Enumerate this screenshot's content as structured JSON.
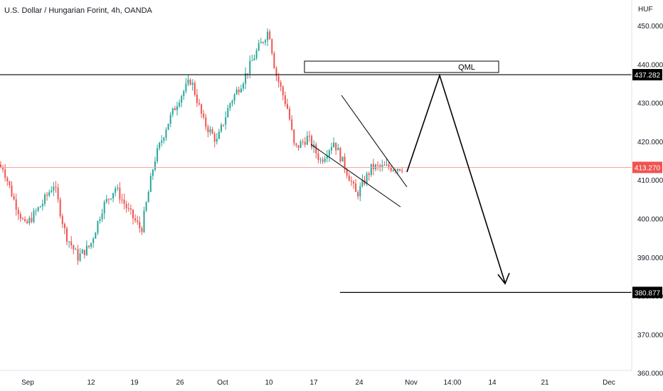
{
  "header": {
    "title": "U.S. Dollar / Hungarian Forint, 4h, OANDA"
  },
  "chart_data": {
    "type": "candlestick",
    "currency": "HUF",
    "y_ticks": [
      "450.000",
      "440.000",
      "430.000",
      "420.000",
      "410.000",
      "400.000",
      "390.000",
      "380.000",
      "370.000",
      "360.000"
    ],
    "y_tick_values": [
      450,
      440,
      430,
      420,
      410,
      400,
      390,
      380,
      370,
      360
    ],
    "x_ticks": [
      "Sep",
      "12",
      "19",
      "26",
      "Oct",
      "10",
      "17",
      "24",
      "Nov",
      "14:00",
      "14",
      "21",
      "Dec"
    ],
    "ylim": [
      358,
      452
    ],
    "grid": false,
    "last_price": {
      "label": "413.270",
      "value": 413.27
    },
    "levels": [
      {
        "label": "437.282",
        "value": 437.282
      },
      {
        "label": "380.877",
        "value": 380.877
      }
    ],
    "annotation": {
      "label": "QML"
    },
    "price_path": [
      [
        "Sep 1",
        414
      ],
      [
        "Sep 3",
        405
      ],
      [
        "Sep 5",
        398
      ],
      [
        "Sep 8",
        404
      ],
      [
        "Sep 10",
        409
      ],
      [
        "Sep 12",
        396
      ],
      [
        "Sep 14",
        390
      ],
      [
        "Sep 16",
        393
      ],
      [
        "Sep 18",
        403
      ],
      [
        "Sep 20",
        408
      ],
      [
        "Sep 22",
        402
      ],
      [
        "Sep 24",
        397
      ],
      [
        "Sep 26",
        415
      ],
      [
        "Sep 28",
        424
      ],
      [
        "Sep 30",
        431
      ],
      [
        "Oct 2",
        436
      ],
      [
        "Oct 4",
        425
      ],
      [
        "Oct 6",
        420
      ],
      [
        "Oct 8",
        430
      ],
      [
        "Oct 10",
        436
      ],
      [
        "Oct 12",
        443
      ],
      [
        "Oct 14",
        449
      ],
      [
        "Oct 15",
        438
      ],
      [
        "Oct 17",
        428
      ],
      [
        "Oct 18",
        418
      ],
      [
        "Oct 20",
        421
      ],
      [
        "Oct 22",
        415
      ],
      [
        "Oct 24",
        420
      ],
      [
        "Oct 26",
        411
      ],
      [
        "Oct 27",
        406
      ],
      [
        "Oct 29",
        413.27
      ]
    ],
    "colors": {
      "up": "#26a69a",
      "down": "#ef5350",
      "line": "#000000",
      "price": "#ef5350"
    }
  }
}
